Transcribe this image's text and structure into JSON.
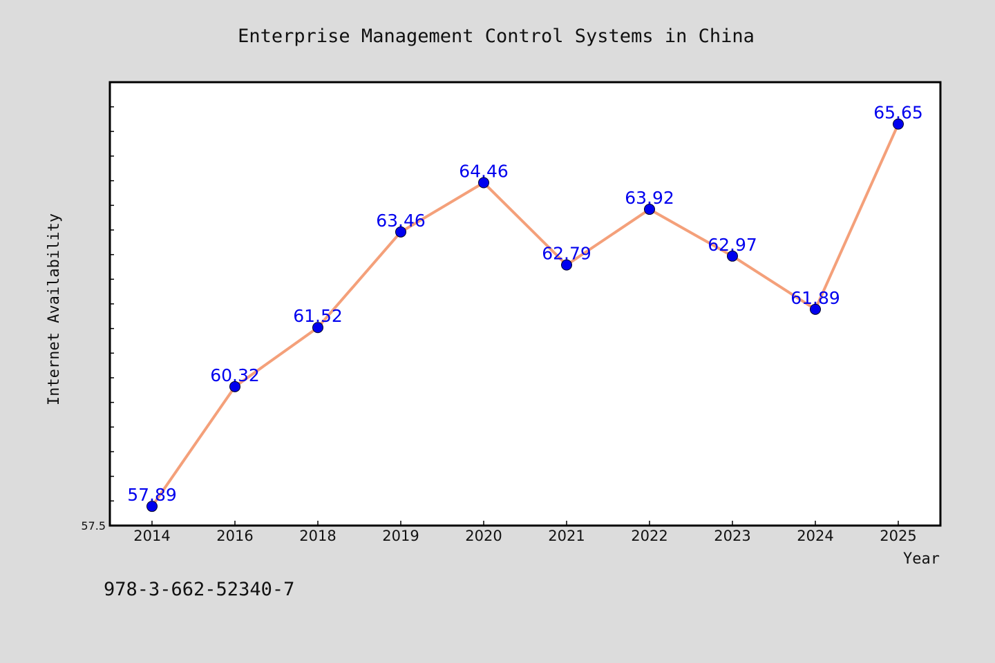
{
  "chart_data": {
    "type": "line",
    "title": "Enterprise Management Control Systems in China",
    "xlabel": "Year",
    "ylabel": "Internet Availability",
    "categories": [
      "2014",
      "2016",
      "2018",
      "2019",
      "2020",
      "2021",
      "2022",
      "2023",
      "2024",
      "2025"
    ],
    "series": [
      {
        "values": [
          57.89,
          60.32,
          61.52,
          63.46,
          64.46,
          62.79,
          63.92,
          62.97,
          61.89,
          65.65
        ],
        "data_labels": [
          "57.89",
          "60.32",
          "61.52",
          "63.46",
          "64.46",
          "62.79",
          "63.92",
          "62.97",
          "61.89",
          "65.65"
        ]
      }
    ],
    "ylim": [
      57.5,
      66.5
    ],
    "yticks": [
      {
        "value": 57.5,
        "label": "57.5"
      }
    ],
    "y_minor_step": 0.5,
    "grid": false,
    "legend": "none",
    "colors": {
      "line": "#f4a07a",
      "marker": "#0000ee",
      "data_label": "#0000ee",
      "background": "#dcdcdc",
      "plot_area": "#ffffff"
    }
  },
  "caption": "978-3-662-52340-7"
}
